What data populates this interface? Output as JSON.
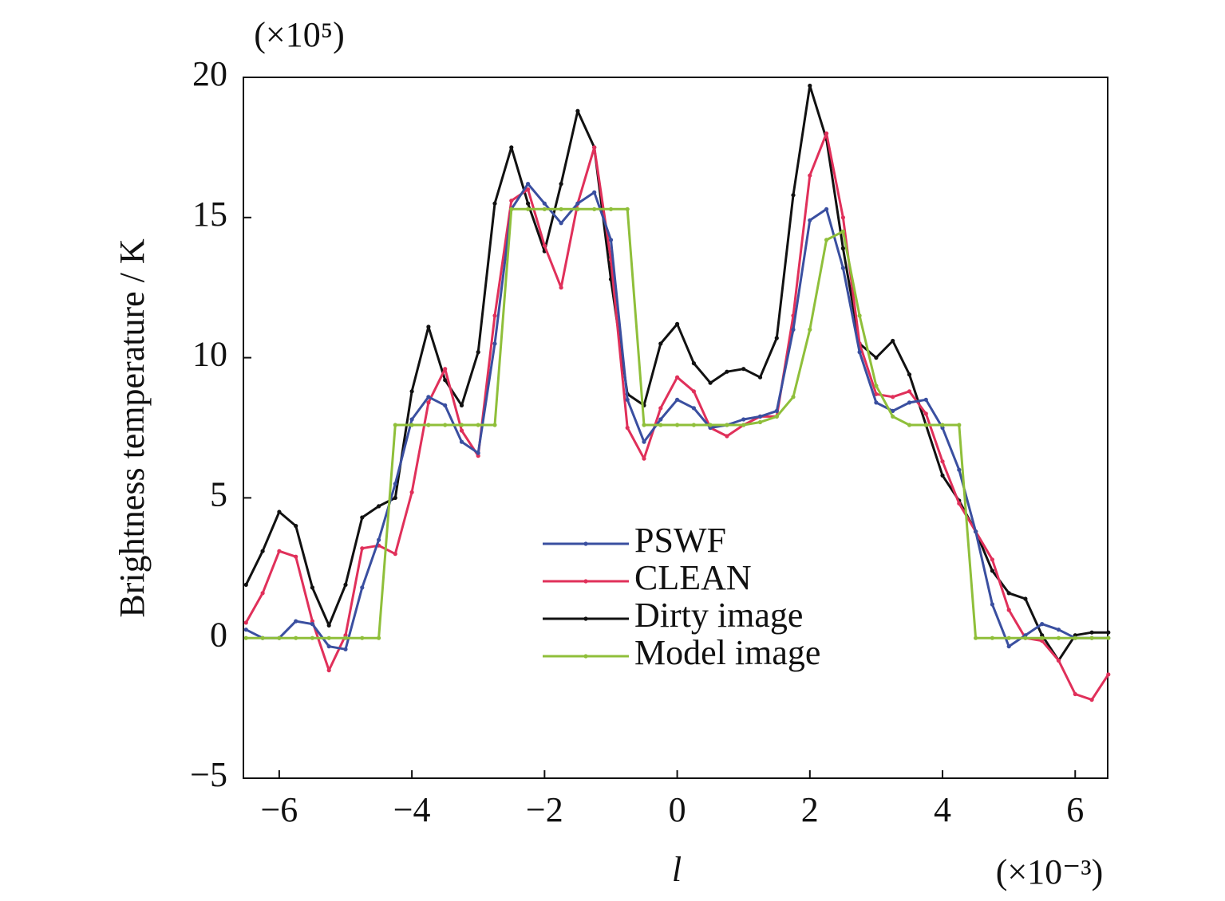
{
  "chart_data": {
    "type": "line",
    "y_label": "Brightness temperature / K",
    "y_multiplier": "(×10⁵)",
    "x_label": "l",
    "x_multiplier": "(×10⁻³)",
    "x": [
      -6.5,
      -6.25,
      -6,
      -5.75,
      -5.5,
      -5.25,
      -5,
      -4.75,
      -4.5,
      -4.25,
      -4,
      -3.75,
      -3.5,
      -3.25,
      -3,
      -2.75,
      -2.5,
      -2.25,
      -2,
      -1.75,
      -1.5,
      -1.25,
      -1,
      -0.75,
      -0.5,
      -0.25,
      0,
      0.25,
      0.5,
      0.75,
      1,
      1.25,
      1.5,
      1.75,
      2,
      2.25,
      2.5,
      2.75,
      3,
      3.25,
      3.5,
      3.75,
      4,
      4.25,
      4.5,
      4.75,
      5,
      5.25,
      5.5,
      5.75,
      6,
      6.25,
      6.5
    ],
    "series": [
      {
        "name": "Dirty image",
        "color": "#111111",
        "values": [
          1.9,
          3.1,
          4.5,
          4.0,
          1.8,
          0.45,
          1.9,
          4.3,
          4.7,
          5.0,
          8.8,
          11.1,
          9.2,
          8.3,
          10.2,
          15.5,
          17.5,
          15.5,
          13.8,
          16.2,
          18.8,
          17.5,
          12.8,
          8.7,
          8.3,
          10.5,
          11.2,
          9.8,
          9.1,
          9.5,
          9.6,
          9.3,
          10.7,
          15.8,
          19.7,
          17.8,
          13.9,
          10.5,
          10.0,
          10.6,
          9.4,
          7.6,
          5.8,
          4.9,
          3.8,
          2.4,
          1.6,
          1.4,
          0.1,
          -0.8,
          0.1,
          0.2,
          0.2
        ]
      },
      {
        "name": "CLEAN",
        "color": "#e0305a",
        "values": [
          0.55,
          1.6,
          3.1,
          2.9,
          0.6,
          -1.15,
          0.1,
          3.2,
          3.3,
          3.0,
          5.2,
          8.4,
          9.6,
          7.4,
          6.5,
          11.5,
          15.6,
          16.0,
          14.0,
          12.5,
          15.5,
          17.5,
          13.5,
          7.5,
          6.4,
          8.2,
          9.3,
          8.8,
          7.5,
          7.2,
          7.6,
          7.9,
          7.9,
          11.5,
          16.5,
          18.0,
          15.0,
          10.5,
          8.7,
          8.6,
          8.8,
          8.0,
          6.3,
          4.8,
          3.8,
          2.8,
          1.0,
          0.0,
          -0.1,
          -0.8,
          -2.0,
          -2.2,
          -1.3
        ]
      },
      {
        "name": "PSWF",
        "color": "#3a4fa0",
        "values": [
          0.3,
          0.0,
          0.0,
          0.6,
          0.5,
          -0.3,
          -0.4,
          1.8,
          3.5,
          5.5,
          7.8,
          8.6,
          8.3,
          7.0,
          6.6,
          10.5,
          15.3,
          16.2,
          15.5,
          14.8,
          15.5,
          15.9,
          14.2,
          8.5,
          7.0,
          7.8,
          8.5,
          8.2,
          7.5,
          7.6,
          7.8,
          7.9,
          8.1,
          11.0,
          14.9,
          15.3,
          13.2,
          10.2,
          8.4,
          8.1,
          8.4,
          8.5,
          7.5,
          6.0,
          3.8,
          1.2,
          -0.3,
          0.1,
          0.5,
          0.3,
          0.0,
          0.0,
          0.0
        ]
      },
      {
        "name": "Model image",
        "color": "#8fbf3a",
        "values": [
          0,
          0,
          0,
          0,
          0,
          0,
          0,
          0,
          0,
          7.6,
          7.6,
          7.6,
          7.6,
          7.6,
          7.6,
          7.6,
          15.3,
          15.3,
          15.3,
          15.3,
          15.3,
          15.3,
          15.3,
          15.3,
          7.6,
          7.6,
          7.6,
          7.6,
          7.6,
          7.6,
          7.6,
          7.7,
          7.9,
          8.6,
          11.0,
          14.2,
          14.5,
          11.5,
          9.0,
          7.9,
          7.6,
          7.6,
          7.6,
          7.6,
          0,
          0,
          0,
          0,
          0,
          0,
          0,
          0,
          0
        ]
      }
    ],
    "legend_order": [
      "PSWF",
      "CLEAN",
      "Dirty image",
      "Model image"
    ],
    "xlim": [
      -6.54,
      6.49
    ],
    "ylim": [
      -5,
      20
    ],
    "xticks": [
      {
        "value": -6,
        "label": "−6"
      },
      {
        "value": -4,
        "label": "−4"
      },
      {
        "value": -2,
        "label": "−2"
      },
      0,
      2,
      4,
      6
    ],
    "yticks": [
      {
        "value": -5,
        "label": "−5"
      },
      0,
      5,
      10,
      15,
      20
    ],
    "grid": false,
    "legend": "center"
  }
}
